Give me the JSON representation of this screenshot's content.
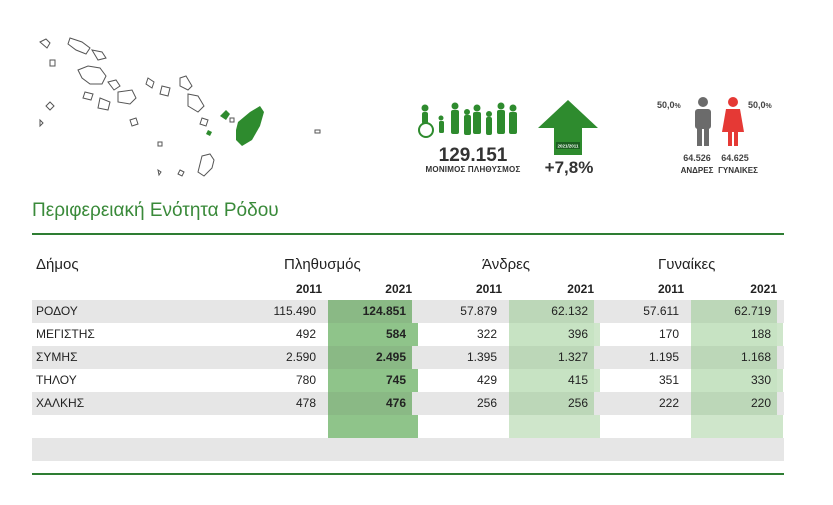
{
  "infographic": {
    "population_total": "129.151",
    "population_label": "ΜΟΝΙΜΟΣ ΠΛΗΘΥΣΜΟΣ",
    "arrow_badge": "2021/2011",
    "growth": "+7,8%",
    "men_pct": "50,0",
    "men_pct_sign": "%",
    "women_pct": "50,0",
    "women_pct_sign": "%",
    "men_count": "64.526",
    "women_count": "64.625",
    "men_label": "ΑΝΔΡΕΣ",
    "women_label": "ΓΥΝΑΙΚΕΣ",
    "colors": {
      "green": "#2e8b2e",
      "dark_green": "#2e7d32",
      "grey": "#6b6b6b",
      "red": "#e53935"
    }
  },
  "region_title": "Περιφερειακή Ενότητα Ρόδου",
  "table": {
    "headers": {
      "municipality": "Δήμος",
      "population": "Πληθυσμός",
      "men": "Άνδρες",
      "women": "Γυναίκες"
    },
    "years": [
      "2011",
      "2021",
      "2011",
      "2021",
      "2011",
      "2021"
    ],
    "rows": [
      {
        "name": "ΡΟΔΟΥ",
        "values": [
          "115.490",
          "124.851",
          "57.879",
          "62.132",
          "57.611",
          "62.719"
        ]
      },
      {
        "name": "ΜΕΓΙΣΤΗΣ",
        "values": [
          "492",
          "584",
          "322",
          "396",
          "170",
          "188"
        ]
      },
      {
        "name": "ΣΥΜΗΣ",
        "values": [
          "2.590",
          "2.495",
          "1.395",
          "1.327",
          "1.195",
          "1.168"
        ]
      },
      {
        "name": "ΤΗΛΟΥ",
        "values": [
          "780",
          "745",
          "429",
          "415",
          "351",
          "330"
        ]
      },
      {
        "name": "ΧΑΛΚΗΣ",
        "values": [
          "478",
          "476",
          "256",
          "256",
          "222",
          "220"
        ]
      }
    ]
  }
}
